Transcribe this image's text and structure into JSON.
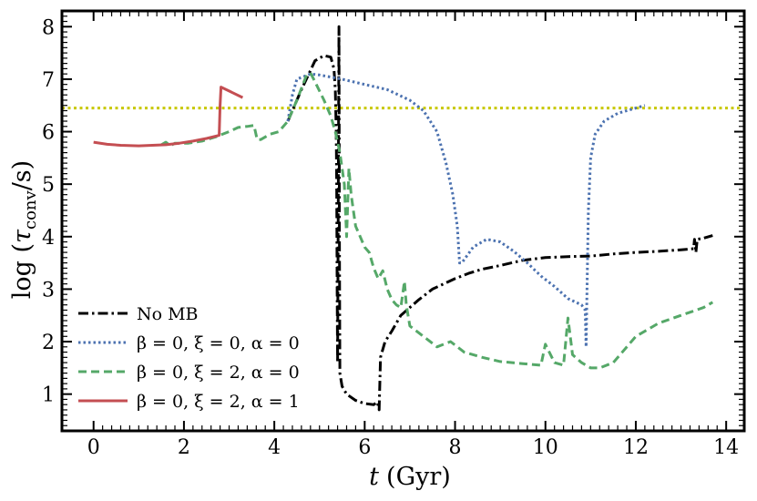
{
  "chart_data": {
    "type": "line",
    "xlabel_var": "t",
    "xlabel_unit": "(Gyr)",
    "ylabel_pre": "log (",
    "ylabel_tau": "τ",
    "ylabel_sub": "conv",
    "ylabel_post": "/s)",
    "xlim": [
      -0.7,
      14.4
    ],
    "ylim": [
      0.3,
      8.3
    ],
    "xticks": [
      0,
      2,
      4,
      6,
      8,
      10,
      12,
      14
    ],
    "yticks": [
      1,
      2,
      3,
      4,
      5,
      6,
      7,
      8
    ],
    "grid": false,
    "legend_position": "lower-left",
    "hline": {
      "y": 6.45,
      "color": "#c8c800",
      "style": "dotted"
    },
    "series": [
      {
        "name": "No MB",
        "color": "#000000",
        "style": "dashdot",
        "points": [
          [
            4.3,
            6.2
          ],
          [
            4.6,
            6.8
          ],
          [
            4.9,
            7.35
          ],
          [
            5.1,
            7.45
          ],
          [
            5.25,
            7.42
          ],
          [
            5.32,
            7.2
          ],
          [
            5.35,
            6.8
          ],
          [
            5.37,
            6.0
          ],
          [
            5.38,
            5.0
          ],
          [
            5.39,
            3.0
          ],
          [
            5.4,
            1.6
          ],
          [
            5.43,
            8.0
          ],
          [
            5.44,
            4.0
          ],
          [
            5.45,
            1.4
          ],
          [
            5.5,
            1.15
          ],
          [
            5.6,
            1.0
          ],
          [
            5.8,
            0.88
          ],
          [
            6.0,
            0.82
          ],
          [
            6.2,
            0.8
          ],
          [
            6.28,
            0.85
          ],
          [
            6.32,
            0.7
          ],
          [
            6.35,
            1.7
          ],
          [
            6.45,
            2.0
          ],
          [
            6.6,
            2.2
          ],
          [
            6.8,
            2.5
          ],
          [
            7.0,
            2.65
          ],
          [
            7.2,
            2.8
          ],
          [
            7.5,
            3.0
          ],
          [
            7.8,
            3.12
          ],
          [
            8.0,
            3.2
          ],
          [
            8.3,
            3.3
          ],
          [
            8.6,
            3.38
          ],
          [
            9.0,
            3.45
          ],
          [
            9.5,
            3.55
          ],
          [
            10.0,
            3.6
          ],
          [
            10.5,
            3.62
          ],
          [
            11.0,
            3.63
          ],
          [
            11.5,
            3.67
          ],
          [
            12.0,
            3.7
          ],
          [
            12.5,
            3.72
          ],
          [
            13.0,
            3.75
          ],
          [
            13.28,
            3.77
          ],
          [
            13.3,
            3.95
          ],
          [
            13.33,
            3.7
          ],
          [
            13.36,
            3.95
          ],
          [
            13.5,
            3.97
          ],
          [
            13.7,
            4.02
          ]
        ]
      },
      {
        "name": "β = 0, ξ = 0, α = 0",
        "color": "#4c72b0",
        "style": "dotted",
        "points": [
          [
            4.3,
            6.2
          ],
          [
            4.4,
            6.7
          ],
          [
            4.5,
            7.0
          ],
          [
            4.8,
            7.1
          ],
          [
            5.0,
            7.08
          ],
          [
            5.5,
            7.0
          ],
          [
            6.0,
            6.9
          ],
          [
            6.5,
            6.8
          ],
          [
            7.0,
            6.6
          ],
          [
            7.3,
            6.4
          ],
          [
            7.6,
            6.0
          ],
          [
            7.8,
            5.4
          ],
          [
            7.95,
            4.8
          ],
          [
            8.05,
            4.2
          ],
          [
            8.1,
            3.5
          ],
          [
            8.15,
            3.5
          ],
          [
            8.4,
            3.8
          ],
          [
            8.7,
            3.95
          ],
          [
            9.0,
            3.9
          ],
          [
            9.3,
            3.72
          ],
          [
            9.6,
            3.5
          ],
          [
            9.9,
            3.25
          ],
          [
            10.2,
            3.05
          ],
          [
            10.5,
            2.82
          ],
          [
            10.8,
            2.7
          ],
          [
            10.88,
            2.6
          ],
          [
            10.9,
            1.9
          ],
          [
            10.92,
            3.0
          ],
          [
            10.95,
            4.5
          ],
          [
            11.0,
            5.5
          ],
          [
            11.1,
            5.95
          ],
          [
            11.3,
            6.2
          ],
          [
            11.6,
            6.35
          ],
          [
            12.0,
            6.45
          ],
          [
            12.2,
            6.5
          ]
        ]
      },
      {
        "name": "β = 0, ξ = 2, α = 0",
        "color": "#55a868",
        "style": "dashed",
        "points": [
          [
            1.5,
            5.75
          ],
          [
            1.6,
            5.8
          ],
          [
            1.7,
            5.73
          ],
          [
            1.8,
            5.78
          ],
          [
            2.1,
            5.78
          ],
          [
            2.4,
            5.82
          ],
          [
            2.7,
            5.9
          ],
          [
            3.0,
            6.0
          ],
          [
            3.2,
            6.08
          ],
          [
            3.4,
            6.1
          ],
          [
            3.55,
            6.12
          ],
          [
            3.62,
            5.85
          ],
          [
            3.7,
            5.85
          ],
          [
            3.9,
            5.95
          ],
          [
            4.1,
            6.0
          ],
          [
            4.3,
            6.2
          ],
          [
            4.5,
            6.6
          ],
          [
            4.7,
            7.05
          ],
          [
            4.8,
            7.12
          ],
          [
            4.9,
            6.95
          ],
          [
            5.1,
            6.6
          ],
          [
            5.25,
            6.3
          ],
          [
            5.35,
            6.0
          ],
          [
            5.45,
            5.6
          ],
          [
            5.55,
            5.0
          ],
          [
            5.6,
            4.0
          ],
          [
            5.65,
            5.3
          ],
          [
            5.7,
            4.8
          ],
          [
            5.75,
            4.5
          ],
          [
            5.8,
            4.2
          ],
          [
            5.9,
            4.0
          ],
          [
            6.0,
            3.8
          ],
          [
            6.1,
            3.7
          ],
          [
            6.2,
            3.4
          ],
          [
            6.3,
            3.2
          ],
          [
            6.4,
            3.35
          ],
          [
            6.5,
            3.0
          ],
          [
            6.6,
            2.8
          ],
          [
            6.7,
            2.7
          ],
          [
            6.8,
            2.65
          ],
          [
            6.88,
            3.15
          ],
          [
            6.92,
            2.7
          ],
          [
            7.0,
            2.3
          ],
          [
            7.3,
            2.1
          ],
          [
            7.6,
            1.9
          ],
          [
            7.9,
            2.0
          ],
          [
            8.2,
            1.8
          ],
          [
            8.6,
            1.7
          ],
          [
            9.0,
            1.62
          ],
          [
            9.5,
            1.58
          ],
          [
            9.9,
            1.55
          ],
          [
            10.0,
            1.95
          ],
          [
            10.2,
            1.6
          ],
          [
            10.4,
            1.55
          ],
          [
            10.5,
            2.45
          ],
          [
            10.6,
            1.75
          ],
          [
            10.8,
            1.6
          ],
          [
            11.0,
            1.5
          ],
          [
            11.2,
            1.5
          ],
          [
            11.5,
            1.6
          ],
          [
            12.0,
            2.1
          ],
          [
            12.5,
            2.35
          ],
          [
            13.0,
            2.5
          ],
          [
            13.5,
            2.65
          ],
          [
            13.7,
            2.75
          ]
        ]
      },
      {
        "name": "β = 0, ξ = 2, α = 1",
        "color": "#c44e52",
        "style": "solid",
        "points": [
          [
            0.0,
            5.8
          ],
          [
            0.3,
            5.76
          ],
          [
            0.6,
            5.74
          ],
          [
            1.0,
            5.73
          ],
          [
            1.3,
            5.74
          ],
          [
            1.6,
            5.75
          ],
          [
            1.9,
            5.78
          ],
          [
            2.2,
            5.82
          ],
          [
            2.5,
            5.87
          ],
          [
            2.78,
            5.93
          ],
          [
            2.8,
            6.5
          ],
          [
            2.82,
            6.85
          ],
          [
            3.3,
            6.65
          ]
        ]
      }
    ]
  }
}
